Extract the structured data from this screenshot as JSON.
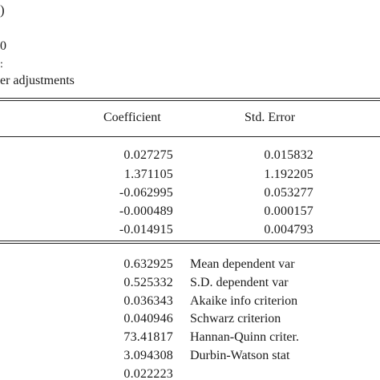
{
  "header": {
    "line1": ")",
    "line2": "0",
    "line3": ":",
    "line4": "er adjustments"
  },
  "columns": {
    "coefficient": "Coefficient",
    "std_error": "Std. Error"
  },
  "coefficients": [
    {
      "coef": "0.027275",
      "se": "0.015832"
    },
    {
      "coef": "1.371105",
      "se": "1.192205"
    },
    {
      "coef": "-0.062995",
      "se": "0.053277"
    },
    {
      "coef": "-0.000489",
      "se": "0.000157"
    },
    {
      "coef": "-0.014915",
      "se": "0.004793"
    }
  ],
  "stats": [
    {
      "value": "0.632925",
      "label": "Mean dependent var"
    },
    {
      "value": "0.525332",
      "label": "S.D. dependent var"
    },
    {
      "value": "0.036343",
      "label": "Akaike info criterion"
    },
    {
      "value": "0.040946",
      "label": "Schwarz criterion"
    },
    {
      "value": "73.41817",
      "label": "Hannan-Quinn criter."
    },
    {
      "value": "3.094308",
      "label": "Durbin-Watson stat"
    },
    {
      "value": "0.022223",
      "label": ""
    }
  ]
}
